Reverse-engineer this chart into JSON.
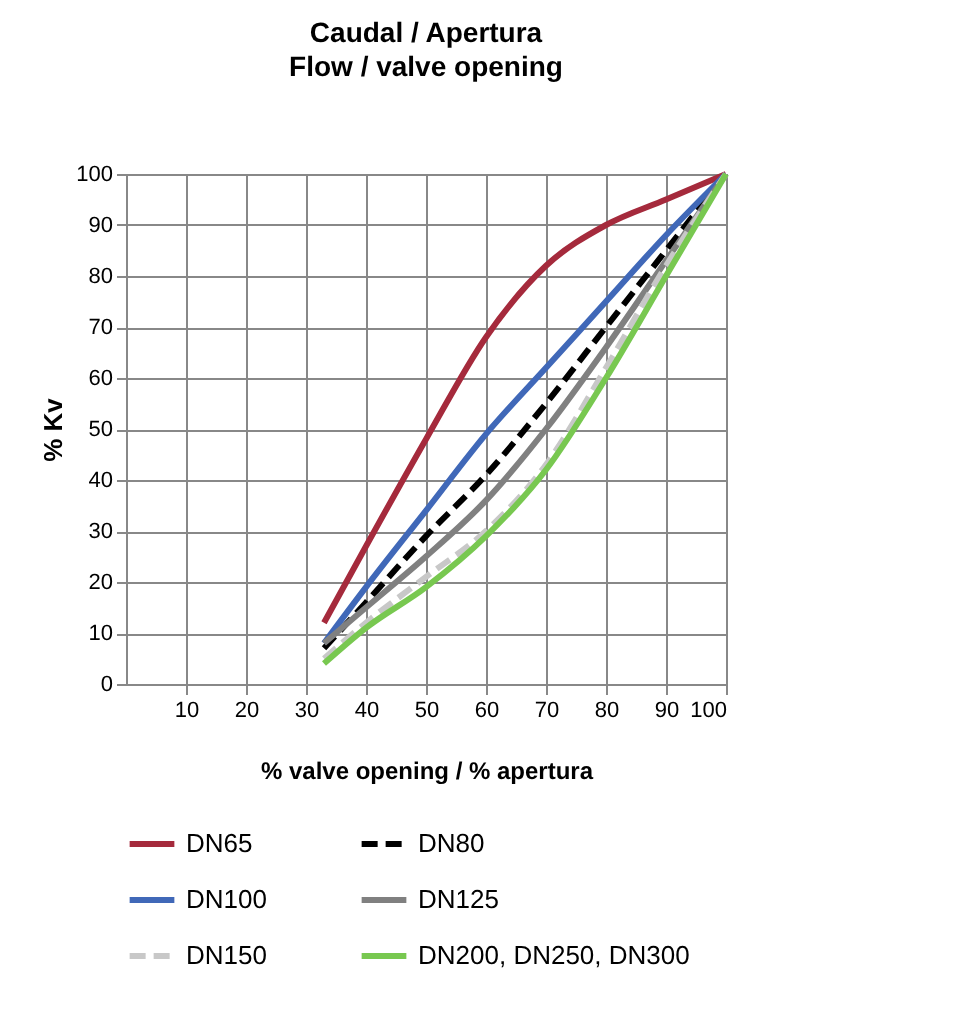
{
  "chart_data": {
    "type": "line",
    "title": "Caudal / Apertura",
    "subtitle": "Flow / valve opening",
    "xlabel": "% valve opening / % apertura",
    "ylabel": "% Kv",
    "x": [
      33,
      40,
      50,
      60,
      70,
      80,
      90,
      100
    ],
    "series": [
      {
        "name": "DN65",
        "color": "#a52a3c",
        "line_style": "solid",
        "values": [
          12,
          27,
          48,
          68,
          82,
          90,
          95,
          100
        ]
      },
      {
        "name": "DN80",
        "color": "#000000",
        "line_style": "dashed",
        "values": [
          7,
          16,
          29,
          41,
          55,
          70,
          85,
          100
        ]
      },
      {
        "name": "DN100",
        "color": "#4068b8",
        "line_style": "solid",
        "values": [
          8,
          19,
          34,
          49,
          62,
          75,
          88,
          100
        ]
      },
      {
        "name": "DN125",
        "color": "#808080",
        "line_style": "solid",
        "values": [
          8,
          15,
          25,
          36,
          50,
          66,
          83,
          100
        ]
      },
      {
        "name": "DN150",
        "color": "#c8c8c8",
        "line_style": "dashed",
        "values": [
          5,
          12,
          21,
          30,
          43,
          62,
          82,
          100
        ]
      },
      {
        "name": "DN200, DN250, DN300",
        "color": "#78c850",
        "line_style": "solid",
        "values": [
          4,
          11,
          19,
          29,
          42,
          60,
          80,
          100
        ]
      }
    ],
    "xlim": [
      0,
      100
    ],
    "xticks": [
      10,
      20,
      30,
      40,
      50,
      60,
      70,
      80,
      90,
      100
    ],
    "ylim": [
      0,
      100
    ],
    "yticks": [
      0,
      10,
      20,
      30,
      40,
      50,
      60,
      70,
      80,
      90,
      100
    ],
    "grid": true,
    "legend": "bottom",
    "marker": "none"
  }
}
